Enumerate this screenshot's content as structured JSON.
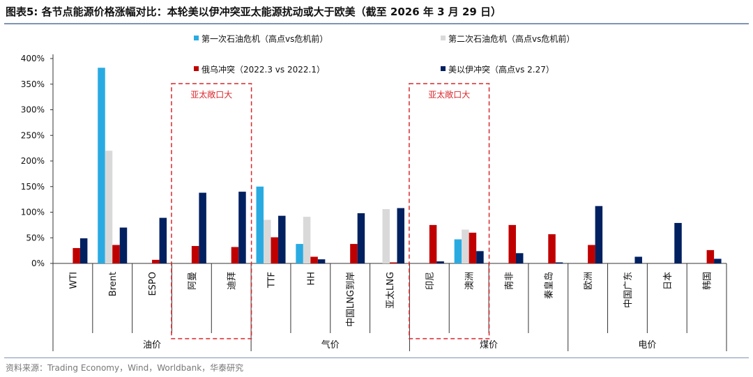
{
  "title": "图表5:  各节点能源价格涨幅对比：本轮美以伊冲突亚太能源扰动或大于欧美（截至 2026 年 3 月 29 日）",
  "source": "资料来源：Trading Economy，Wind，Worldbank，华泰研究",
  "annotation": "亚太敞口大",
  "colors": {
    "first_oil_crisis": "#29abe2",
    "second_oil_crisis": "#d9d9d9",
    "russia_ukraine": "#c00000",
    "us_israel_iran": "#002060",
    "highlight_box": "#d9262b"
  },
  "chart_data": {
    "type": "bar",
    "ylim": [
      0,
      400
    ],
    "yticks": [
      "0%",
      "50%",
      "100%",
      "150%",
      "200%",
      "250%",
      "300%",
      "350%",
      "400%"
    ],
    "categories": [
      "WTI",
      "Brent",
      "ESPO",
      "阿曼",
      "迪拜",
      "TTF",
      "HH",
      "中国LNG到岸",
      "亚太LNG",
      "印尼",
      "澳洲",
      "南非",
      "秦皇岛",
      "欧洲",
      "中国广东",
      "日本",
      "韩国"
    ],
    "groups": [
      {
        "label": "油价",
        "start": 0,
        "end": 4
      },
      {
        "label": "气价",
        "start": 5,
        "end": 8
      },
      {
        "label": "煤价",
        "start": 9,
        "end": 12
      },
      {
        "label": "电价",
        "start": 13,
        "end": 16
      }
    ],
    "highlight_ranges": [
      [
        3,
        4
      ],
      [
        9,
        10
      ]
    ],
    "series": [
      {
        "name": "第一次石油危机（高点vs危机前）",
        "key": "first_oil_crisis",
        "values": [
          null,
          382,
          null,
          null,
          null,
          150,
          38,
          null,
          null,
          null,
          47,
          null,
          null,
          null,
          null,
          null,
          null
        ]
      },
      {
        "name": "第二次石油危机（高点vs危机前）",
        "key": "second_oil_crisis",
        "values": [
          null,
          220,
          null,
          null,
          null,
          85,
          91,
          null,
          106,
          null,
          66,
          null,
          null,
          null,
          null,
          null,
          null
        ]
      },
      {
        "name": "俄乌冲突（2022.3 vs 2022.1）",
        "key": "russia_ukraine",
        "values": [
          30,
          36,
          7,
          34,
          32,
          51,
          13,
          38,
          2,
          75,
          60,
          75,
          57,
          36,
          null,
          null,
          26
        ]
      },
      {
        "name": "美以伊冲突（高点vs 2.27）",
        "key": "us_israel_iran",
        "values": [
          49,
          70,
          89,
          138,
          140,
          93,
          8,
          98,
          108,
          4,
          24,
          20,
          2,
          112,
          13,
          79,
          9
        ]
      }
    ]
  }
}
